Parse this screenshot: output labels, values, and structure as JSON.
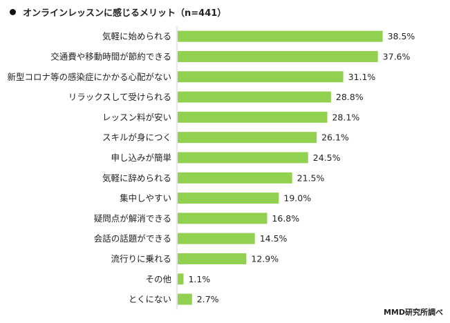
{
  "chart_data": {
    "type": "bar",
    "orientation": "horizontal",
    "title": "オンラインレッスンに感じるメリット（n=441）",
    "categories": [
      "気軽に始められる",
      "交通費や移動時間が節約できる",
      "新型コロナ等の感染症にかかる心配がない",
      "リラックスして受けられる",
      "レッスン料が安い",
      "スキルが身につく",
      "申し込みが簡単",
      "気軽に辞められる",
      "集中しやすい",
      "疑問点が解消できる",
      "会話の話題ができる",
      "流行りに乗れる",
      "その他",
      "とくにない"
    ],
    "values": [
      38.5,
      37.6,
      31.1,
      28.8,
      28.1,
      26.1,
      24.5,
      21.5,
      19.0,
      16.8,
      14.5,
      12.9,
      1.1,
      2.7
    ],
    "value_labels": [
      "38.5%",
      "37.6%",
      "31.1%",
      "28.8%",
      "28.1%",
      "26.1%",
      "24.5%",
      "21.5%",
      "19.0%",
      "16.8%",
      "14.5%",
      "12.9%",
      "1.1%",
      "2.7%"
    ],
    "xlim": [
      0,
      40
    ],
    "bar_color": "#92d050",
    "grid": false,
    "legend": "none"
  },
  "source": "MMD研究所調べ"
}
